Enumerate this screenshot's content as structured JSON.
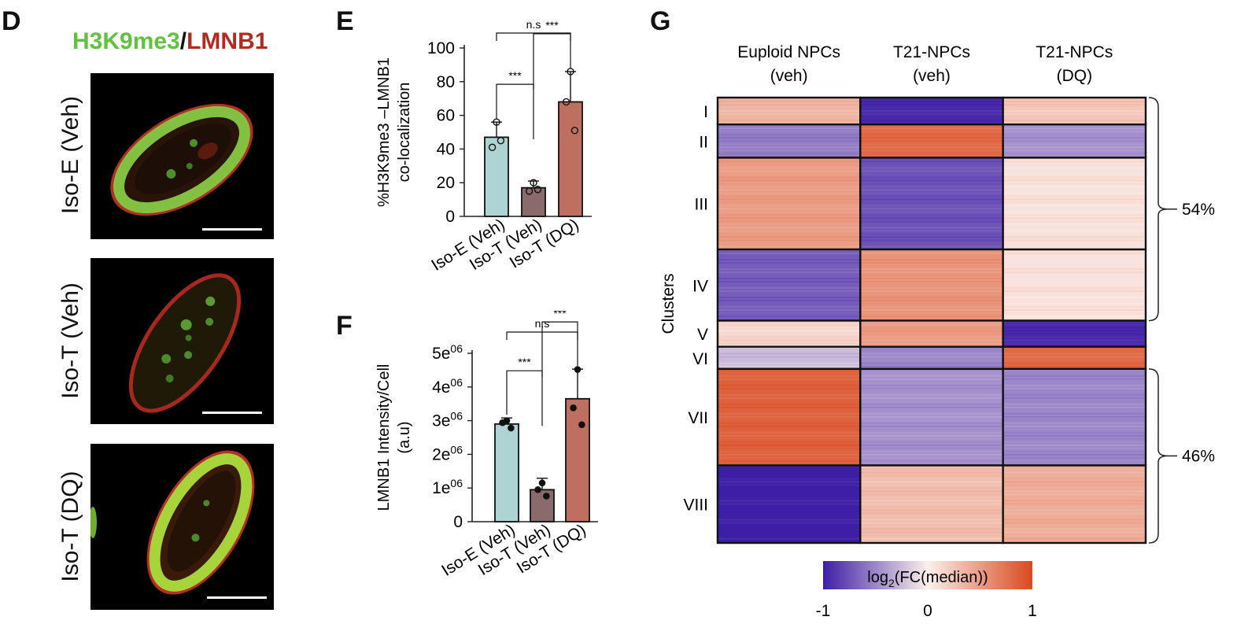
{
  "panels": {
    "D": "D",
    "E": "E",
    "F": "F",
    "G": "G"
  },
  "panel_d": {
    "title_green": "H3K9me3",
    "title_sep": "/",
    "title_red": "LMNB1",
    "title_green_color": "#5fc33c",
    "title_red_color": "#b32a1f",
    "rows": [
      {
        "label": "Iso-E (Veh)"
      },
      {
        "label": "Iso-T (Veh)"
      },
      {
        "label": "Iso-T (DQ)"
      }
    ]
  },
  "chart_data": [
    {
      "panel": "E",
      "type": "bar",
      "categories": [
        "Iso-E (Veh)",
        "Iso-T (Veh)",
        "Iso-T (DQ)"
      ],
      "values": [
        47,
        17,
        68
      ],
      "error_upper": [
        56,
        21,
        86
      ],
      "points": [
        [
          56,
          41,
          45
        ],
        [
          20,
          15,
          16
        ],
        [
          86,
          68,
          51
        ]
      ],
      "colors": [
        "#aed3d3",
        "#8a6a6a",
        "#bf6f5f"
      ],
      "ylabel_lines": [
        "%H3K9me3 –LMNB1",
        "co-localization"
      ],
      "ylim": [
        0,
        100
      ],
      "yticks": [
        0,
        20,
        40,
        60,
        80,
        100
      ],
      "ytick_labels": [
        "0",
        "20",
        "40",
        "60",
        "80",
        "100"
      ],
      "marker": "open-circle",
      "significance": [
        {
          "from": 0,
          "to": 1,
          "label": "***"
        },
        {
          "from": 1,
          "to": 2,
          "label": "***"
        },
        {
          "from": 0,
          "to": 2,
          "label": "n.s"
        }
      ]
    },
    {
      "panel": "F",
      "type": "bar",
      "categories": [
        "Iso-E (Veh)",
        "Iso-T (Veh)",
        "Iso-T (DQ)"
      ],
      "values": [
        2900000,
        950000,
        3650000
      ],
      "error_upper": [
        3080000,
        1290000,
        4530000
      ],
      "points": [
        [
          3000000,
          2940000,
          2780000
        ],
        [
          1150000,
          950000,
          760000
        ],
        [
          4520000,
          3380000,
          2880000
        ]
      ],
      "colors": [
        "#aed3d3",
        "#8a6a6a",
        "#bf6f5f"
      ],
      "ylabel_lines": [
        "LMNB1 Intensity/Cell",
        "(a.u)"
      ],
      "ylim": [
        0,
        5000000
      ],
      "yticks": [
        0,
        1000000,
        2000000,
        3000000,
        4000000,
        5000000
      ],
      "ytick_labels": [
        {
          "base": "0",
          "exp": ""
        },
        {
          "base": "1e",
          "exp": "06"
        },
        {
          "base": "2e",
          "exp": "06"
        },
        {
          "base": "3e",
          "exp": "06"
        },
        {
          "base": "4e",
          "exp": "06"
        },
        {
          "base": "5e",
          "exp": "06"
        }
      ],
      "marker": "filled-circle",
      "significance": [
        {
          "from": 0,
          "to": 1,
          "label": "***"
        },
        {
          "from": 1,
          "to": 2,
          "label": "***"
        },
        {
          "from": 0,
          "to": 2,
          "label": "n.s"
        }
      ]
    },
    {
      "panel": "G",
      "type": "heatmap",
      "columns": [
        {
          "line1": "Euploid NPCs",
          "line2": "(veh)"
        },
        {
          "line1": "T21-NPCs",
          "line2": "(veh)"
        },
        {
          "line1": "T21-NPCs",
          "line2": "(DQ)"
        }
      ],
      "row_axis_label": "Clusters",
      "clusters": [
        {
          "label": "I",
          "weight": 34,
          "values": [
            0.35,
            -0.95,
            0.25
          ]
        },
        {
          "label": "II",
          "weight": 42,
          "values": [
            -0.55,
            0.8,
            -0.45
          ]
        },
        {
          "label": "III",
          "weight": 116,
          "values": [
            0.5,
            -0.75,
            0.08
          ]
        },
        {
          "label": "IV",
          "weight": 90,
          "values": [
            -0.7,
            0.55,
            0.08
          ]
        },
        {
          "label": "V",
          "weight": 33,
          "values": [
            0.15,
            0.5,
            -0.95
          ]
        },
        {
          "label": "VI",
          "weight": 28,
          "values": [
            -0.25,
            -0.5,
            0.8
          ]
        },
        {
          "label": "VII",
          "weight": 122,
          "values": [
            0.85,
            -0.45,
            -0.5
          ]
        },
        {
          "label": "VIII",
          "weight": 98,
          "values": [
            -1.0,
            0.3,
            0.4
          ]
        }
      ],
      "groups": [
        {
          "from": 0,
          "to": 3,
          "label": "54%"
        },
        {
          "from": 6,
          "to": 7,
          "label": "46%"
        }
      ],
      "colorbar": {
        "label_base": "log",
        "label_sub": "2",
        "label_rest": "(FC(median))",
        "min": -1,
        "max": 1,
        "ticks": [
          {
            "value": -1,
            "label": "-1"
          },
          {
            "value": 0,
            "label": "0"
          },
          {
            "value": 1,
            "label": "1"
          }
        ],
        "color_low": "#3d1fa6",
        "color_mid": "#fbefeb",
        "color_high": "#d9491f"
      }
    }
  ]
}
